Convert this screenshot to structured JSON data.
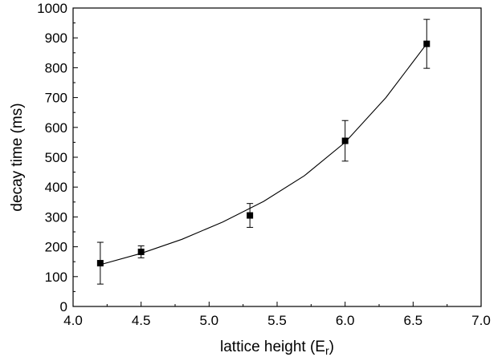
{
  "chart_data": {
    "type": "scatter",
    "title": "",
    "xlabel": "lattice height (E",
    "xlabel_sub": "r",
    "xlabel_close": ")",
    "ylabel": "decay time (ms)",
    "xlim": [
      4.0,
      7.0
    ],
    "ylim": [
      0,
      1000
    ],
    "xticks": [
      "4.0",
      "4.5",
      "5.0",
      "5.5",
      "6.0",
      "6.5",
      "7.0"
    ],
    "yticks": [
      "0",
      "100",
      "200",
      "300",
      "400",
      "500",
      "600",
      "700",
      "800",
      "900",
      "1000"
    ],
    "grid": false,
    "legend": "none",
    "series": [
      {
        "x": [
          4.2,
          4.5,
          5.3,
          6.0,
          6.6
        ],
        "y": [
          145,
          183,
          305,
          555,
          880
        ],
        "yerr": [
          70,
          20,
          40,
          68,
          82
        ]
      }
    ],
    "fit_curve": {
      "x": [
        4.2,
        4.5,
        4.8,
        5.1,
        5.4,
        5.7,
        6.0,
        6.3,
        6.6
      ],
      "y": [
        140,
        178,
        225,
        283,
        352,
        438,
        550,
        700,
        880
      ]
    },
    "colors": {
      "marker": "#000000",
      "line": "#000000"
    }
  }
}
